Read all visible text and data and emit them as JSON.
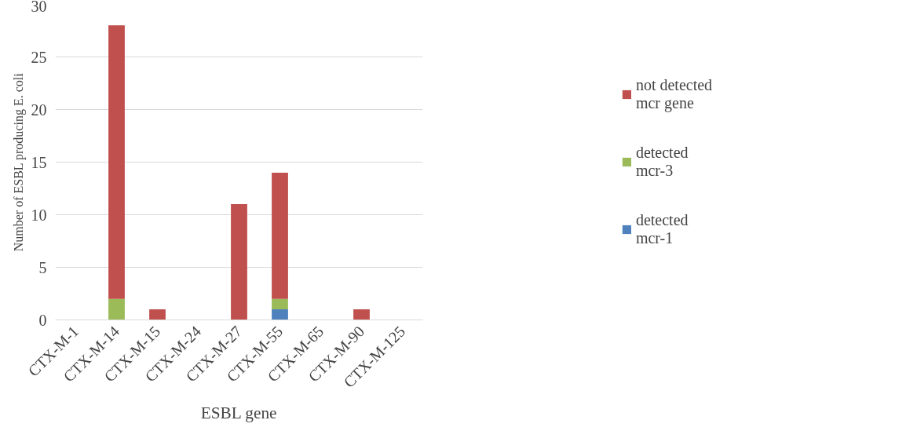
{
  "chart_data": {
    "type": "bar",
    "stacked": true,
    "xlabel": "ESBL gene",
    "ylabel": "Number of ESBL producing E. coli",
    "categories": [
      "CTX-M-1",
      "CTX-M-14",
      "CTX-M-15",
      "CTX-M-24",
      "CTX-M-27",
      "CTX-M-55",
      "CTX-M-65",
      "CTX-M-90",
      "CTX-M-125"
    ],
    "series": [
      {
        "name": "detected mcr-1",
        "color": "#4f81bd",
        "values": [
          0,
          0,
          0,
          0,
          0,
          1,
          0,
          0,
          0
        ]
      },
      {
        "name": "detected mcr-3",
        "color": "#9bbb59",
        "values": [
          0,
          2,
          0,
          0,
          0,
          1,
          0,
          0,
          0
        ]
      },
      {
        "name": "not detected mcr gene",
        "color": "#c0504d",
        "values": [
          0,
          26,
          1,
          0,
          11,
          12,
          0,
          1,
          0
        ]
      }
    ],
    "ylim": [
      0,
      30
    ],
    "yticks": [
      0,
      5,
      10,
      15,
      20,
      25,
      30
    ],
    "grid": "y",
    "legend": "right"
  }
}
